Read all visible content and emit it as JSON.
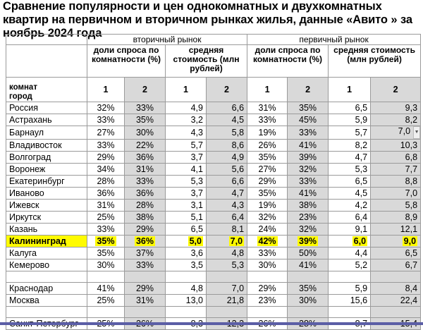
{
  "title": "Сравнение популярности и цен однокомнатных и двухкомнатных квартир на первичном и вторичном рынках жилья, данные «Авито » за ноябрь 2024 года",
  "table": {
    "secondary_market": "вторичный рынок",
    "primary_market": "первичный рынок",
    "sec_share": "доли спроса по комнатности (%)",
    "sec_price": "средняя стоимость (млн рублей)",
    "pri_share": "доли спроса по комнатности (%)",
    "pri_price": "средняя стоимость (млн рублей)",
    "row_header_line1": "комнат",
    "row_header_line2": "город",
    "room_cols": [
      "1",
      "2",
      "1",
      "2",
      "1",
      "2",
      "1",
      "2"
    ],
    "rows": [
      {
        "city": "Россия",
        "v": [
          "32%",
          "33%",
          "4,9",
          "6,6",
          "31%",
          "35%",
          "6,5",
          "9,3"
        ]
      },
      {
        "city": "Астрахань",
        "v": [
          "33%",
          "35%",
          "3,2",
          "4,5",
          "33%",
          "45%",
          "5,9",
          "8,2"
        ]
      },
      {
        "city": "Барнаул",
        "v": [
          "27%",
          "30%",
          "4,3",
          "5,8",
          "19%",
          "33%",
          "5,7",
          "7,0"
        ]
      },
      {
        "city": "Владивосток",
        "v": [
          "33%",
          "22%",
          "5,7",
          "8,6",
          "26%",
          "41%",
          "8,2",
          "10,3"
        ]
      },
      {
        "city": "Волгоград",
        "v": [
          "29%",
          "36%",
          "3,7",
          "4,9",
          "35%",
          "39%",
          "4,7",
          "6,8"
        ]
      },
      {
        "city": "Воронеж",
        "v": [
          "34%",
          "31%",
          "4,1",
          "5,6",
          "27%",
          "32%",
          "5,3",
          "7,7"
        ]
      },
      {
        "city": "Екатеринбург",
        "v": [
          "28%",
          "33%",
          "5,3",
          "6,6",
          "29%",
          "33%",
          "6,5",
          "8,8"
        ]
      },
      {
        "city": "Иваново",
        "v": [
          "36%",
          "36%",
          "3,7",
          "4,7",
          "35%",
          "41%",
          "4,5",
          "7,0"
        ]
      },
      {
        "city": "Ижевск",
        "v": [
          "31%",
          "28%",
          "3,1",
          "4,3",
          "19%",
          "38%",
          "4,2",
          "5,8"
        ]
      },
      {
        "city": "Иркутск",
        "v": [
          "25%",
          "38%",
          "5,1",
          "6,4",
          "32%",
          "23%",
          "6,4",
          "8,9"
        ]
      },
      {
        "city": "Казань",
        "v": [
          "33%",
          "29%",
          "6,5",
          "8,1",
          "24%",
          "32%",
          "9,1",
          "12,1"
        ]
      },
      {
        "city": "Калининград",
        "v": [
          "35%",
          "36%",
          "5,0",
          "7,0",
          "42%",
          "39%",
          "6,0",
          "9,0"
        ],
        "hl": true
      },
      {
        "city": "Калуга",
        "v": [
          "35%",
          "37%",
          "3,6",
          "4,8",
          "33%",
          "50%",
          "4,4",
          "6,5"
        ]
      },
      {
        "city": "Кемерово",
        "v": [
          "30%",
          "33%",
          "3,5",
          "5,3",
          "30%",
          "41%",
          "5,2",
          "6,7"
        ]
      },
      {
        "empty": true
      },
      {
        "city": "Краснодар",
        "v": [
          "41%",
          "29%",
          "4,8",
          "7,0",
          "29%",
          "35%",
          "5,9",
          "8,4"
        ]
      },
      {
        "city": "Москва",
        "v": [
          "25%",
          "31%",
          "13,0",
          "21,8",
          "23%",
          "30%",
          "15,6",
          "22,4"
        ]
      },
      {
        "empty": true
      },
      {
        "city": "Санкт-Петербург",
        "v": [
          "25%",
          "26%",
          "8,3",
          "12,3",
          "26%",
          "28%",
          "8,7",
          "15,4"
        ]
      }
    ]
  },
  "colors": {
    "highlight": "#fffb00",
    "gray_column": "#d9d9d9",
    "bottom_bar": "#5b5ea6"
  },
  "icons": {
    "dropdown": "chevron-down-icon"
  }
}
